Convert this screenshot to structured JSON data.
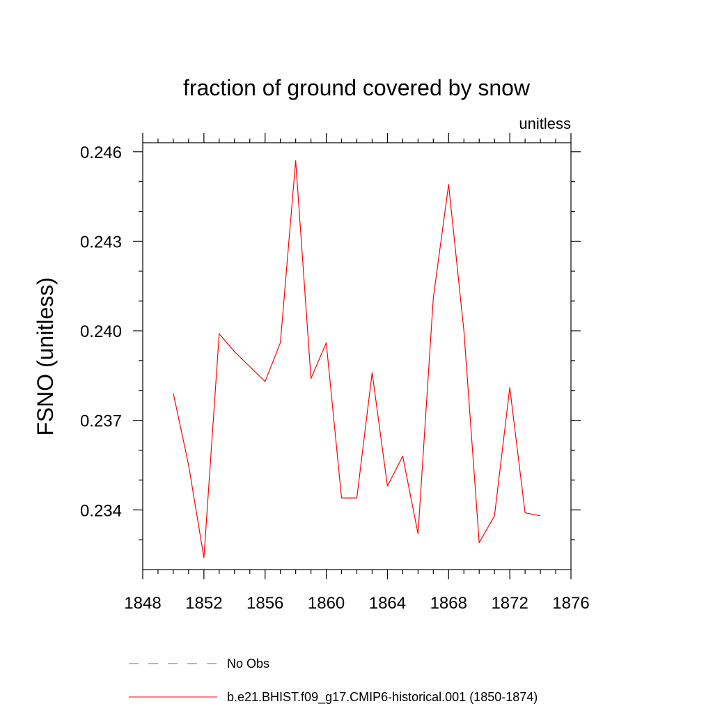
{
  "chart_data": {
    "type": "line",
    "title": "fraction of ground covered by snow",
    "units_label": "unitless",
    "ylabel": "FSNO  (unitless)",
    "xlabel": "",
    "xlim": [
      1848,
      1876
    ],
    "ylim": [
      0.232,
      0.2463
    ],
    "x_ticks": [
      1848,
      1852,
      1856,
      1860,
      1864,
      1868,
      1872,
      1876
    ],
    "y_ticks": [
      0.234,
      0.237,
      0.24,
      0.243,
      0.246
    ],
    "y_tick_labels": [
      "0.234",
      "0.237",
      "0.240",
      "0.243",
      "0.246"
    ],
    "grid": false,
    "legend_position": "bottom",
    "series": [
      {
        "name": "b.e21.BHIST.f09_g17.CMIP6-historical.001 (1850-1874)",
        "color": "#ff0000",
        "style": "solid",
        "x": [
          1850,
          1851,
          1852,
          1853,
          1854,
          1855,
          1856,
          1857,
          1858,
          1859,
          1860,
          1861,
          1862,
          1863,
          1864,
          1865,
          1866,
          1867,
          1868,
          1869,
          1870,
          1871,
          1872,
          1873,
          1874
        ],
        "y": [
          0.2379,
          0.2355,
          0.2324,
          0.2399,
          0.2393,
          0.2388,
          0.2383,
          0.2396,
          0.2457,
          0.2384,
          0.2396,
          0.2344,
          0.2344,
          0.2386,
          0.2348,
          0.2358,
          0.2332,
          0.2411,
          0.2449,
          0.24,
          0.2329,
          0.2338,
          0.2381,
          0.2339,
          0.2338
        ]
      }
    ],
    "legend": [
      {
        "label": "No Obs",
        "color": "#6a5acd",
        "style": "dashed"
      },
      {
        "label": "b.e21.BHIST.f09_g17.CMIP6-historical.001 (1850-1874)",
        "color": "#ff0000",
        "style": "solid"
      }
    ]
  }
}
